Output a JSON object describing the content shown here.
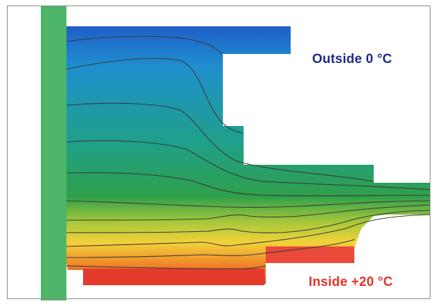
{
  "labels": {
    "outside": "Outside 0 °C",
    "inside": "Inside +20 °C"
  },
  "colors": {
    "outside_text": "#1e2b8c",
    "inside_text": "#e3342a",
    "wall_strip": "#4db56a",
    "isotherm_line": "#3a3a3a",
    "frame": "#8a8a8a",
    "background": "#ffffff"
  },
  "temperature_gradient": {
    "cold": "#1f5fc8",
    "mid_blue": "#1f8fce",
    "teal": "#1fa08a",
    "green": "#2fa04a",
    "yellow_green": "#a8c83a",
    "yellow": "#f3d23a",
    "orange": "#f08a2a",
    "warm": "#e63a2a"
  }
}
